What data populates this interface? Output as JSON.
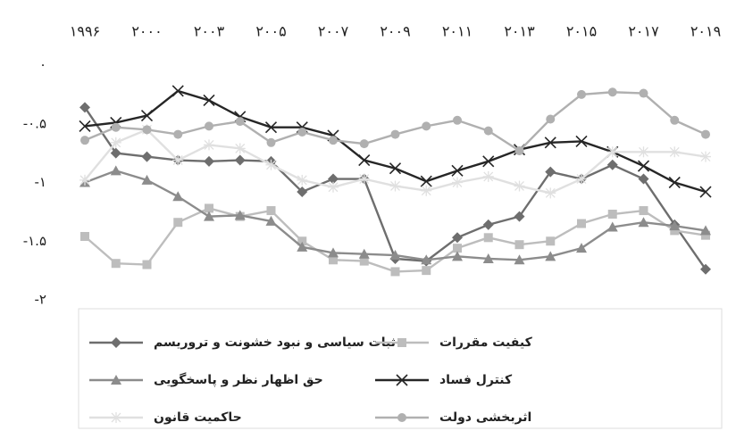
{
  "chart_data": {
    "type": "line",
    "categories": [
      "۱۹۹۶",
      null,
      "۲۰۰۰",
      null,
      "۲۰۰۳",
      null,
      "۲۰۰۵",
      null,
      "۲۰۰۷",
      null,
      "۲۰۰۹",
      null,
      "۲۰۱۱",
      null,
      "۲۰۱۳",
      null,
      "۲۰۱۵",
      null,
      "۲۰۱۷",
      null,
      "۲۰۱۹"
    ],
    "ylim": [
      -2,
      0
    ],
    "yticks": [
      {
        "value": 0,
        "label": "۰"
      },
      {
        "value": -0.5,
        "label": "-۰.۵"
      },
      {
        "value": -1,
        "label": "-۱"
      },
      {
        "value": -1.5,
        "label": "-۱.۵"
      },
      {
        "value": -2,
        "label": "-۲"
      }
    ],
    "series": [
      {
        "name": "ثبات سیاسی و نبود خشونت و تروریسم",
        "color": "#6e6e6e",
        "marker": "diamond",
        "values": [
          -0.36,
          -0.75,
          -0.78,
          -0.81,
          -0.82,
          -0.81,
          -0.82,
          -1.08,
          -0.97,
          -0.97,
          -1.65,
          -1.67,
          -1.47,
          -1.36,
          -1.29,
          -0.91,
          -0.97,
          -0.85,
          -0.97,
          -1.36,
          -1.74
        ]
      },
      {
        "name": "کیفیت مقررات",
        "color": "#bdbdbd",
        "marker": "square",
        "values": [
          -1.46,
          -1.69,
          -1.7,
          -1.34,
          -1.22,
          -1.29,
          -1.24,
          -1.5,
          -1.66,
          -1.67,
          -1.76,
          -1.75,
          -1.56,
          -1.47,
          -1.53,
          -1.5,
          -1.35,
          -1.27,
          -1.24,
          -1.41,
          -1.45
        ]
      },
      {
        "name": "حق اظهار نظر و پاسخگویی",
        "color": "#8c8c8c",
        "marker": "triangle",
        "values": [
          -1.0,
          -0.9,
          -0.98,
          -1.12,
          -1.29,
          -1.28,
          -1.33,
          -1.55,
          -1.6,
          -1.61,
          -1.62,
          -1.66,
          -1.63,
          -1.65,
          -1.66,
          -1.63,
          -1.56,
          -1.38,
          -1.34,
          -1.37,
          -1.41
        ]
      },
      {
        "name": "کنترل فساد",
        "color": "#262626",
        "marker": "x",
        "values": [
          -0.52,
          -0.49,
          -0.43,
          -0.22,
          -0.3,
          -0.44,
          -0.53,
          -0.53,
          -0.6,
          -0.81,
          -0.88,
          -0.99,
          -0.9,
          -0.82,
          -0.72,
          -0.66,
          -0.65,
          -0.74,
          -0.86,
          -1.0,
          -1.08
        ]
      },
      {
        "name": "حاکمیت قانون",
        "color": "#e0e0e0",
        "marker": "star",
        "values": [
          -0.98,
          -0.66,
          -0.55,
          -0.81,
          -0.68,
          -0.71,
          -0.85,
          -0.98,
          -1.04,
          -0.97,
          -1.03,
          -1.07,
          -1.0,
          -0.95,
          -1.03,
          -1.09,
          -0.97,
          -0.74,
          -0.74,
          -0.74,
          -0.78
        ]
      },
      {
        "name": "اثربخشی دولت",
        "color": "#b0b0b0",
        "marker": "circle",
        "values": [
          -0.64,
          -0.53,
          -0.55,
          -0.59,
          -0.52,
          -0.48,
          -0.66,
          -0.57,
          -0.64,
          -0.67,
          -0.59,
          -0.52,
          -0.47,
          -0.56,
          -0.73,
          -0.46,
          -0.25,
          -0.23,
          -0.24,
          -0.47,
          -0.59
        ]
      }
    ]
  }
}
